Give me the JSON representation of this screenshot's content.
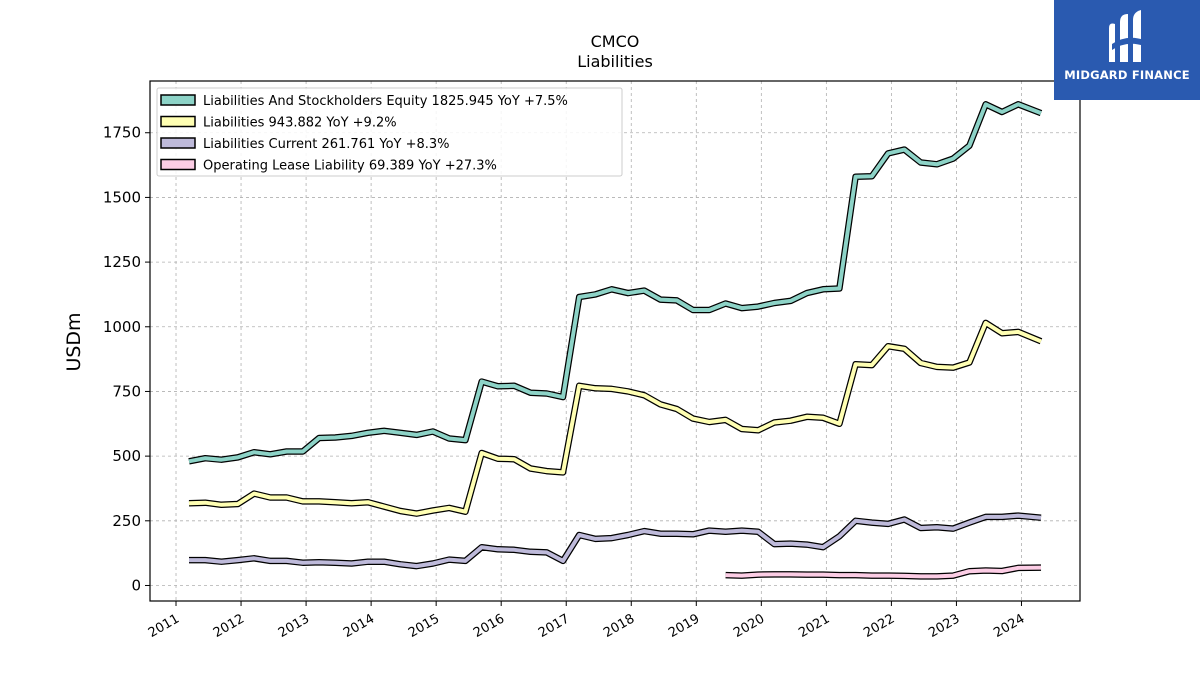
{
  "logo": {
    "text": "MIDGARD FINANCE",
    "background": "#2a5ab0"
  },
  "chart_data": {
    "type": "line",
    "title": "CMCO",
    "subtitle": "Liabilities",
    "ylabel": "USDm",
    "xlabel": "",
    "ylim": [
      -60,
      1950
    ],
    "xlim": [
      2010.6,
      2024.9
    ],
    "yticks": [
      0,
      250,
      500,
      750,
      1000,
      1250,
      1500,
      1750
    ],
    "xticks": [
      "2011",
      "2012",
      "2013",
      "2014",
      "2015",
      "2016",
      "2017",
      "2018",
      "2019",
      "2020",
      "2021",
      "2022",
      "2023",
      "2024"
    ],
    "grid": true,
    "legend_position": "top-left",
    "series": [
      {
        "name": "Liabilities And Stockholders Equity",
        "legend": "Liabilities And Stockholders Equity  1825.945 YoY +7.5%",
        "color": "#8dd3c7",
        "points": [
          [
            2011.2,
            480
          ],
          [
            2011.45,
            492
          ],
          [
            2011.7,
            486
          ],
          [
            2011.95,
            495
          ],
          [
            2012.2,
            515
          ],
          [
            2012.45,
            507
          ],
          [
            2012.7,
            518
          ],
          [
            2012.95,
            518
          ],
          [
            2013.2,
            570
          ],
          [
            2013.45,
            572
          ],
          [
            2013.7,
            578
          ],
          [
            2013.95,
            590
          ],
          [
            2014.2,
            598
          ],
          [
            2014.45,
            590
          ],
          [
            2014.7,
            582
          ],
          [
            2014.95,
            595
          ],
          [
            2015.2,
            568
          ],
          [
            2015.45,
            562
          ],
          [
            2015.7,
            788
          ],
          [
            2015.95,
            770
          ],
          [
            2016.2,
            772
          ],
          [
            2016.45,
            745
          ],
          [
            2016.7,
            742
          ],
          [
            2016.95,
            728
          ],
          [
            2017.2,
            1115
          ],
          [
            2017.45,
            1125
          ],
          [
            2017.7,
            1145
          ],
          [
            2017.95,
            1130
          ],
          [
            2018.2,
            1140
          ],
          [
            2018.45,
            1105
          ],
          [
            2018.7,
            1102
          ],
          [
            2018.95,
            1065
          ],
          [
            2019.2,
            1065
          ],
          [
            2019.45,
            1090
          ],
          [
            2019.7,
            1072
          ],
          [
            2019.95,
            1078
          ],
          [
            2020.2,
            1092
          ],
          [
            2020.45,
            1100
          ],
          [
            2020.7,
            1130
          ],
          [
            2020.95,
            1145
          ],
          [
            2021.2,
            1148
          ],
          [
            2021.45,
            1580
          ],
          [
            2021.7,
            1582
          ],
          [
            2021.95,
            1670
          ],
          [
            2022.2,
            1685
          ],
          [
            2022.45,
            1635
          ],
          [
            2022.7,
            1628
          ],
          [
            2022.95,
            1650
          ],
          [
            2023.2,
            1700
          ],
          [
            2023.45,
            1860
          ],
          [
            2023.7,
            1830
          ],
          [
            2023.95,
            1860
          ],
          [
            2024.3,
            1826
          ]
        ]
      },
      {
        "name": "Liabilities",
        "legend": "Liabilities  943.882 YoY +9.2%",
        "color": "#ffffb3",
        "points": [
          [
            2011.2,
            318
          ],
          [
            2011.45,
            320
          ],
          [
            2011.7,
            312
          ],
          [
            2011.95,
            315
          ],
          [
            2012.2,
            355
          ],
          [
            2012.45,
            340
          ],
          [
            2012.7,
            340
          ],
          [
            2012.95,
            325
          ],
          [
            2013.2,
            325
          ],
          [
            2013.45,
            322
          ],
          [
            2013.7,
            318
          ],
          [
            2013.95,
            322
          ],
          [
            2014.2,
            305
          ],
          [
            2014.45,
            288
          ],
          [
            2014.7,
            278
          ],
          [
            2014.95,
            290
          ],
          [
            2015.2,
            300
          ],
          [
            2015.45,
            285
          ],
          [
            2015.7,
            512
          ],
          [
            2015.95,
            490
          ],
          [
            2016.2,
            488
          ],
          [
            2016.45,
            452
          ],
          [
            2016.7,
            442
          ],
          [
            2016.95,
            437
          ],
          [
            2017.2,
            772
          ],
          [
            2017.45,
            762
          ],
          [
            2017.7,
            760
          ],
          [
            2017.95,
            750
          ],
          [
            2018.2,
            735
          ],
          [
            2018.45,
            700
          ],
          [
            2018.7,
            682
          ],
          [
            2018.95,
            645
          ],
          [
            2019.2,
            632
          ],
          [
            2019.45,
            640
          ],
          [
            2019.7,
            605
          ],
          [
            2019.95,
            600
          ],
          [
            2020.2,
            630
          ],
          [
            2020.45,
            637
          ],
          [
            2020.7,
            652
          ],
          [
            2020.95,
            648
          ],
          [
            2021.2,
            625
          ],
          [
            2021.45,
            855
          ],
          [
            2021.7,
            852
          ],
          [
            2021.95,
            925
          ],
          [
            2022.2,
            915
          ],
          [
            2022.45,
            860
          ],
          [
            2022.7,
            845
          ],
          [
            2022.95,
            842
          ],
          [
            2023.2,
            862
          ],
          [
            2023.45,
            1015
          ],
          [
            2023.7,
            975
          ],
          [
            2023.95,
            980
          ],
          [
            2024.3,
            944
          ]
        ]
      },
      {
        "name": "Liabilities Current",
        "legend": "Liabilities Current  261.761 YoY +8.3%",
        "color": "#bebada",
        "points": [
          [
            2011.2,
            98
          ],
          [
            2011.45,
            98
          ],
          [
            2011.7,
            92
          ],
          [
            2011.95,
            98
          ],
          [
            2012.2,
            105
          ],
          [
            2012.45,
            95
          ],
          [
            2012.7,
            95
          ],
          [
            2012.95,
            88
          ],
          [
            2013.2,
            90
          ],
          [
            2013.45,
            88
          ],
          [
            2013.7,
            85
          ],
          [
            2013.95,
            92
          ],
          [
            2014.2,
            92
          ],
          [
            2014.45,
            82
          ],
          [
            2014.7,
            75
          ],
          [
            2014.95,
            85
          ],
          [
            2015.2,
            100
          ],
          [
            2015.45,
            95
          ],
          [
            2015.7,
            148
          ],
          [
            2015.95,
            140
          ],
          [
            2016.2,
            138
          ],
          [
            2016.45,
            130
          ],
          [
            2016.7,
            128
          ],
          [
            2016.95,
            95
          ],
          [
            2017.2,
            195
          ],
          [
            2017.45,
            180
          ],
          [
            2017.7,
            183
          ],
          [
            2017.95,
            195
          ],
          [
            2018.2,
            210
          ],
          [
            2018.45,
            200
          ],
          [
            2018.7,
            200
          ],
          [
            2018.95,
            198
          ],
          [
            2019.2,
            212
          ],
          [
            2019.45,
            208
          ],
          [
            2019.7,
            212
          ],
          [
            2019.95,
            208
          ],
          [
            2020.2,
            160
          ],
          [
            2020.45,
            162
          ],
          [
            2020.7,
            158
          ],
          [
            2020.95,
            148
          ],
          [
            2021.2,
            190
          ],
          [
            2021.45,
            250
          ],
          [
            2021.7,
            243
          ],
          [
            2021.95,
            238
          ],
          [
            2022.2,
            255
          ],
          [
            2022.45,
            222
          ],
          [
            2022.7,
            225
          ],
          [
            2022.95,
            220
          ],
          [
            2023.2,
            243
          ],
          [
            2023.45,
            265
          ],
          [
            2023.7,
            265
          ],
          [
            2023.95,
            270
          ],
          [
            2024.3,
            262
          ]
        ]
      },
      {
        "name": "Operating Lease Liability",
        "legend": "Operating Lease Liability  69.389 YoY +27.3%",
        "color": "#fccde5",
        "points": [
          [
            2019.45,
            40
          ],
          [
            2019.7,
            38
          ],
          [
            2019.95,
            42
          ],
          [
            2020.2,
            43
          ],
          [
            2020.45,
            43
          ],
          [
            2020.7,
            42
          ],
          [
            2020.95,
            42
          ],
          [
            2021.2,
            40
          ],
          [
            2021.45,
            40
          ],
          [
            2021.7,
            38
          ],
          [
            2021.95,
            38
          ],
          [
            2022.2,
            37
          ],
          [
            2022.45,
            35
          ],
          [
            2022.7,
            35
          ],
          [
            2022.95,
            38
          ],
          [
            2023.2,
            55
          ],
          [
            2023.45,
            58
          ],
          [
            2023.7,
            56
          ],
          [
            2023.95,
            68
          ],
          [
            2024.3,
            69
          ]
        ]
      }
    ]
  }
}
